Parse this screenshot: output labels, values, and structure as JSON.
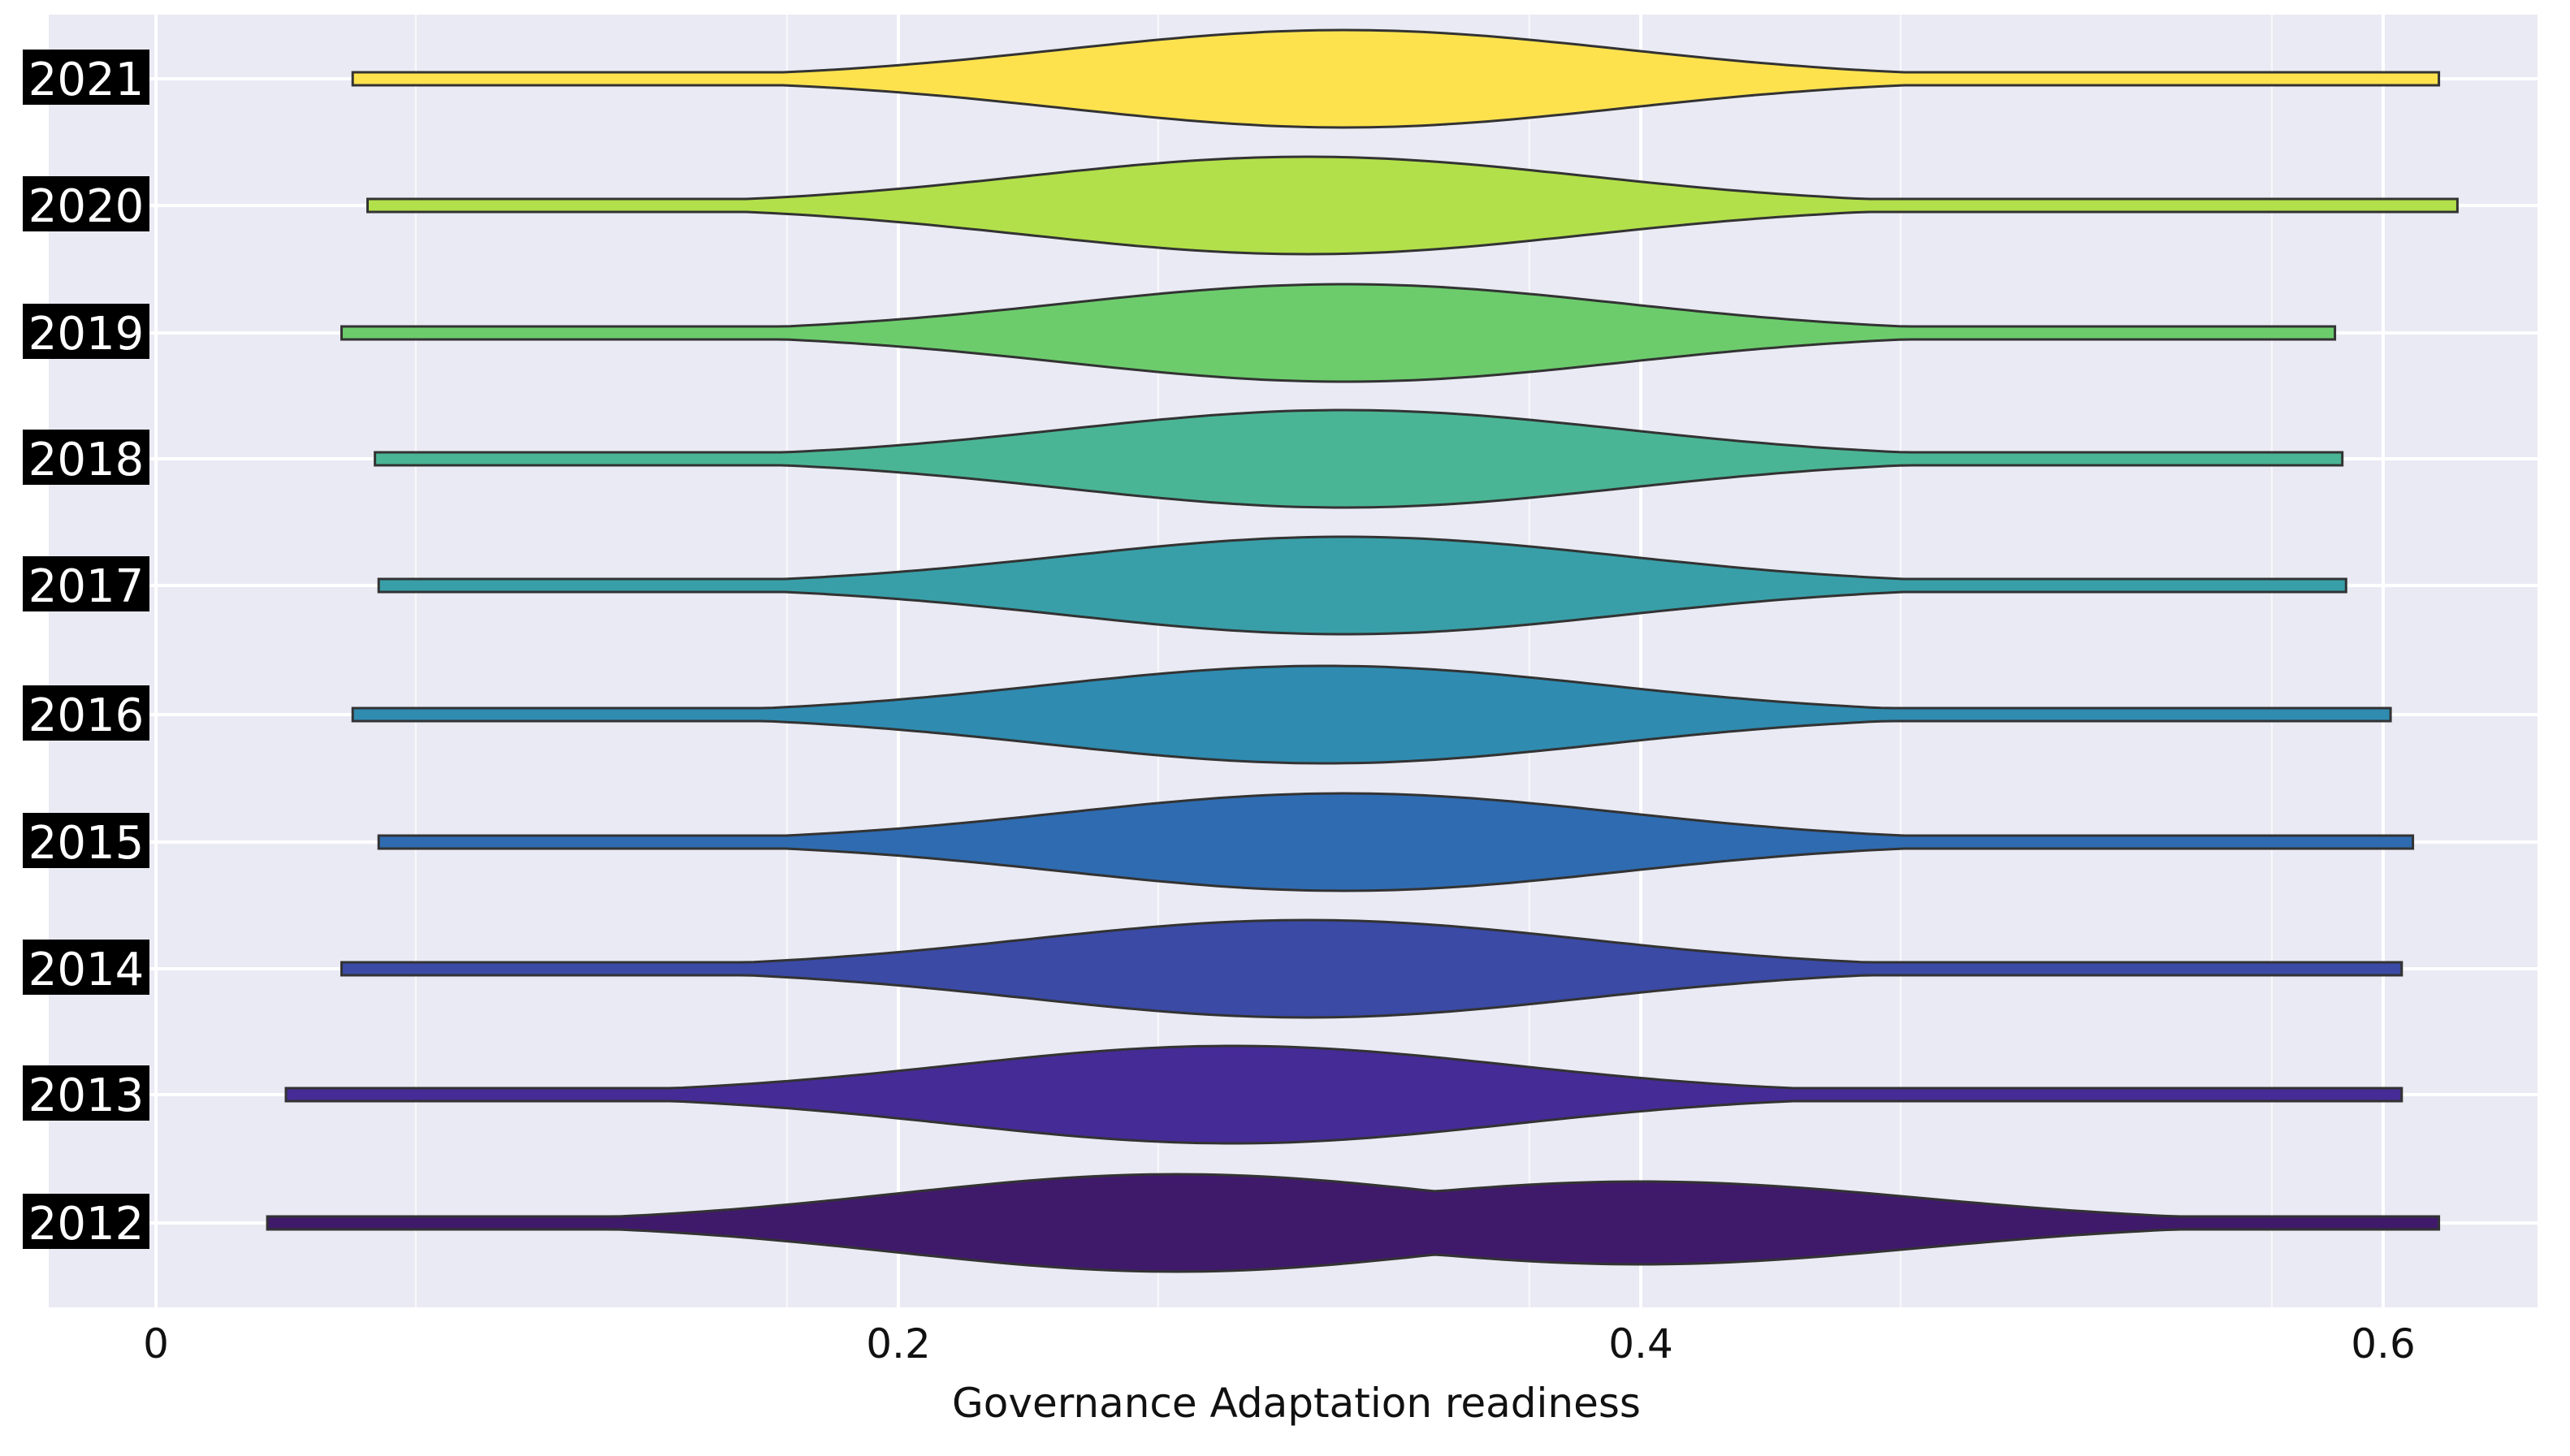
{
  "chart_data": {
    "type": "violin",
    "orientation": "horizontal",
    "xlabel": "Governance Adaptation readiness",
    "ylabel": "",
    "title": "",
    "xlim": [
      0,
      0.65
    ],
    "x_ticks": [
      {
        "value": 0,
        "label": "0"
      },
      {
        "value": 0.2,
        "label": "0.2"
      },
      {
        "value": 0.4,
        "label": "0.4"
      },
      {
        "value": 0.6,
        "label": "0.6"
      }
    ],
    "minor_gridlines": [
      0.07,
      0.17,
      0.27,
      0.37,
      0.47,
      0.57
    ],
    "grid": true,
    "background_color": "#eaeaf4",
    "series": [
      {
        "name": "2012",
        "color": "#3f1a6b",
        "min": 0.03,
        "max": 0.615,
        "peaks": [
          {
            "at": 0.275,
            "height": 1.0
          },
          {
            "at": 0.4,
            "height": 0.85
          }
        ]
      },
      {
        "name": "2013",
        "color": "#452b96",
        "min": 0.035,
        "max": 0.605,
        "peaks": [
          {
            "at": 0.29,
            "height": 1.0
          }
        ]
      },
      {
        "name": "2014",
        "color": "#3a4aa5",
        "min": 0.05,
        "max": 0.605,
        "peaks": [
          {
            "at": 0.31,
            "height": 1.0
          }
        ]
      },
      {
        "name": "2015",
        "color": "#2f6bb0",
        "min": 0.06,
        "max": 0.608,
        "peaks": [
          {
            "at": 0.32,
            "height": 1.0
          }
        ]
      },
      {
        "name": "2016",
        "color": "#2f8bb0",
        "min": 0.053,
        "max": 0.602,
        "peaks": [
          {
            "at": 0.315,
            "height": 1.0
          }
        ]
      },
      {
        "name": "2017",
        "color": "#389fa8",
        "min": 0.06,
        "max": 0.59,
        "peaks": [
          {
            "at": 0.32,
            "height": 1.0
          }
        ]
      },
      {
        "name": "2018",
        "color": "#4ab595",
        "min": 0.059,
        "max": 0.589,
        "peaks": [
          {
            "at": 0.32,
            "height": 1.0
          }
        ]
      },
      {
        "name": "2019",
        "color": "#6ccc6c",
        "min": 0.05,
        "max": 0.587,
        "peaks": [
          {
            "at": 0.32,
            "height": 1.0
          }
        ]
      },
      {
        "name": "2020",
        "color": "#b2e04a",
        "min": 0.057,
        "max": 0.62,
        "peaks": [
          {
            "at": 0.31,
            "height": 1.0
          }
        ]
      },
      {
        "name": "2021",
        "color": "#fde24e",
        "min": 0.053,
        "max": 0.615,
        "peaks": [
          {
            "at": 0.32,
            "height": 1.0
          }
        ]
      }
    ]
  }
}
